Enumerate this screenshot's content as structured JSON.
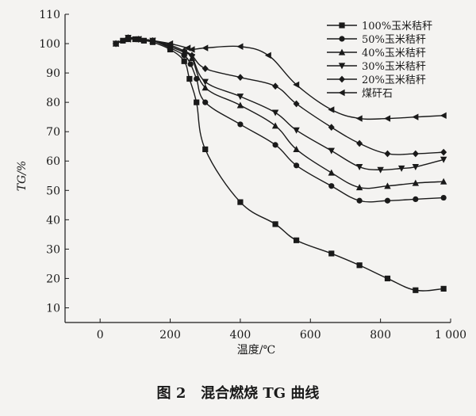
{
  "chart_data": {
    "type": "line",
    "caption": "图 2   混合燃烧 TG 曲线",
    "xlabel": "温度/℃",
    "ylabel": "TG/%",
    "xlim": [
      -100,
      1000
    ],
    "ylim": [
      5,
      110
    ],
    "x_ticks": [
      0,
      200,
      400,
      600,
      800,
      1000
    ],
    "x_tick_labels": [
      "0",
      "200",
      "400",
      "600",
      "800",
      "1 000"
    ],
    "y_ticks": [
      10,
      20,
      30,
      40,
      50,
      60,
      70,
      80,
      90,
      100,
      110
    ],
    "grid": false,
    "legend_position": "top-right",
    "series": [
      {
        "name": "100%玉米秸秆",
        "marker": "square",
        "x": [
          45,
          65,
          80,
          100,
          125,
          150,
          200,
          240,
          255,
          275,
          300,
          400,
          500,
          560,
          660,
          740,
          820,
          900,
          980
        ],
        "y": [
          100,
          101,
          101.5,
          101.5,
          101,
          100.5,
          98,
          94,
          88,
          80,
          64,
          46,
          38.5,
          33,
          28.5,
          24.5,
          20,
          16,
          16.5
        ]
      },
      {
        "name": "50%玉米秸秆",
        "marker": "circle",
        "x": [
          45,
          80,
          110,
          150,
          200,
          240,
          258,
          275,
          300,
          400,
          500,
          560,
          660,
          740,
          820,
          900,
          980
        ],
        "y": [
          100,
          101.5,
          101.5,
          101,
          98.5,
          96,
          93,
          88,
          80,
          72.5,
          65.5,
          58.5,
          51.5,
          46.5,
          46.5,
          47,
          47.5
        ]
      },
      {
        "name": "40%玉米秸秆",
        "marker": "triangle-up",
        "x": [
          45,
          80,
          110,
          150,
          200,
          240,
          262,
          300,
          400,
          500,
          560,
          660,
          740,
          820,
          900,
          980
        ],
        "y": [
          100,
          102,
          101.5,
          101,
          99,
          97,
          95,
          85,
          79,
          72,
          64,
          56,
          51,
          51.5,
          52.5,
          53
        ]
      },
      {
        "name": "30%玉米秸秆",
        "marker": "triangle-down",
        "x": [
          45,
          80,
          110,
          150,
          200,
          240,
          262,
          300,
          400,
          500,
          560,
          660,
          740,
          800,
          860,
          900,
          980
        ],
        "y": [
          100,
          102,
          101.5,
          101,
          99,
          97,
          95.5,
          87,
          82,
          76.5,
          70.5,
          63.5,
          58,
          57,
          57.5,
          58,
          60.5
        ]
      },
      {
        "name": "20%玉米秸秆",
        "marker": "diamond",
        "x": [
          45,
          80,
          110,
          150,
          200,
          240,
          262,
          300,
          400,
          500,
          560,
          660,
          740,
          820,
          900,
          980
        ],
        "y": [
          100,
          102,
          101.5,
          101,
          99.5,
          97.5,
          96,
          91.5,
          88.5,
          85.5,
          79.5,
          71.5,
          66,
          62.5,
          62.5,
          63
        ]
      },
      {
        "name": "煤矸石",
        "marker": "triangle-left",
        "x": [
          45,
          80,
          110,
          150,
          200,
          250,
          262,
          300,
          400,
          480,
          560,
          660,
          740,
          820,
          900,
          980
        ],
        "y": [
          100,
          101.5,
          101.5,
          101,
          100,
          98.5,
          98,
          98.5,
          99,
          96,
          86,
          77.5,
          74.5,
          74.5,
          75,
          75.5
        ]
      }
    ]
  }
}
